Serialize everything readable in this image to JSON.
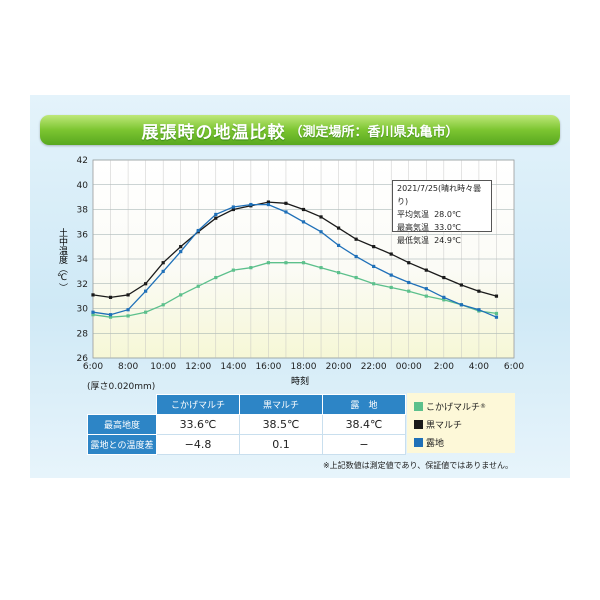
{
  "banner": {
    "title": "展張時の地温比較",
    "subtitle": "（測定場所：香川県丸亀市）"
  },
  "info": {
    "date": "2021/7/25(晴れ時々曇り)",
    "rows": [
      {
        "label": "平均気温",
        "value": "28.0℃"
      },
      {
        "label": "最高気温",
        "value": "33.0℃"
      },
      {
        "label": "最低気温",
        "value": "24.9℃"
      }
    ]
  },
  "chart_data": {
    "type": "line",
    "ylabel": "土中温度（℃）",
    "xlabel": "時刻",
    "ylim": [
      26,
      42
    ],
    "yticks": [
      26,
      28,
      30,
      32,
      34,
      36,
      38,
      40,
      42
    ],
    "x_tick_labels": [
      "6:00",
      "8:00",
      "10:00",
      "12:00",
      "14:00",
      "16:00",
      "18:00",
      "20:00",
      "22:00",
      "00:00",
      "2:00",
      "4:00",
      "6:00"
    ],
    "x_hours": [
      6,
      7,
      8,
      9,
      10,
      11,
      12,
      13,
      14,
      15,
      16,
      17,
      18,
      19,
      20,
      21,
      22,
      23,
      24,
      25,
      26,
      27,
      28,
      29
    ],
    "grid": true,
    "series": [
      {
        "name": "こかげマルチ",
        "color": "#5cc08c",
        "values": [
          29.5,
          29.3,
          29.4,
          29.7,
          30.3,
          31.1,
          31.8,
          32.5,
          33.1,
          33.3,
          33.7,
          33.7,
          33.7,
          33.3,
          32.9,
          32.5,
          32.0,
          31.7,
          31.4,
          31.0,
          30.7,
          30.3,
          29.8,
          29.6
        ]
      },
      {
        "name": "黒マルチ",
        "color": "#1a1a1a",
        "values": [
          31.1,
          30.9,
          31.1,
          32.0,
          33.7,
          35.0,
          36.2,
          37.3,
          38.0,
          38.3,
          38.6,
          38.5,
          38.0,
          37.4,
          36.5,
          35.6,
          35.0,
          34.4,
          33.7,
          33.1,
          32.5,
          31.9,
          31.4,
          31.0
        ]
      },
      {
        "name": "露地",
        "color": "#1f70b8",
        "values": [
          29.7,
          29.5,
          29.9,
          31.4,
          33.0,
          34.6,
          36.3,
          37.6,
          38.2,
          38.4,
          38.4,
          37.8,
          37.0,
          36.2,
          35.1,
          34.2,
          33.4,
          32.7,
          32.1,
          31.6,
          30.9,
          30.3,
          29.9,
          29.3
        ]
      }
    ]
  },
  "table": {
    "thickness_note": "(厚さ0.020mm)",
    "headers": [
      "こかげマルチ",
      "黒マルチ",
      "露　地"
    ],
    "rows": [
      {
        "label": "最高地度",
        "values": [
          "33.6℃",
          "38.5℃",
          "38.4℃"
        ]
      },
      {
        "label": "露地との温度差",
        "values": [
          "−4.8",
          "0.1",
          "−"
        ]
      }
    ]
  },
  "legend": [
    {
      "label": "こかげマルチ",
      "sup": "®",
      "color": "#5cc08c"
    },
    {
      "label": "黒マルチ",
      "color": "#1a1a1a"
    },
    {
      "label": "露地",
      "color": "#1f70b8"
    }
  ],
  "note": "※上記数値は測定値であり、保証値ではありません。"
}
